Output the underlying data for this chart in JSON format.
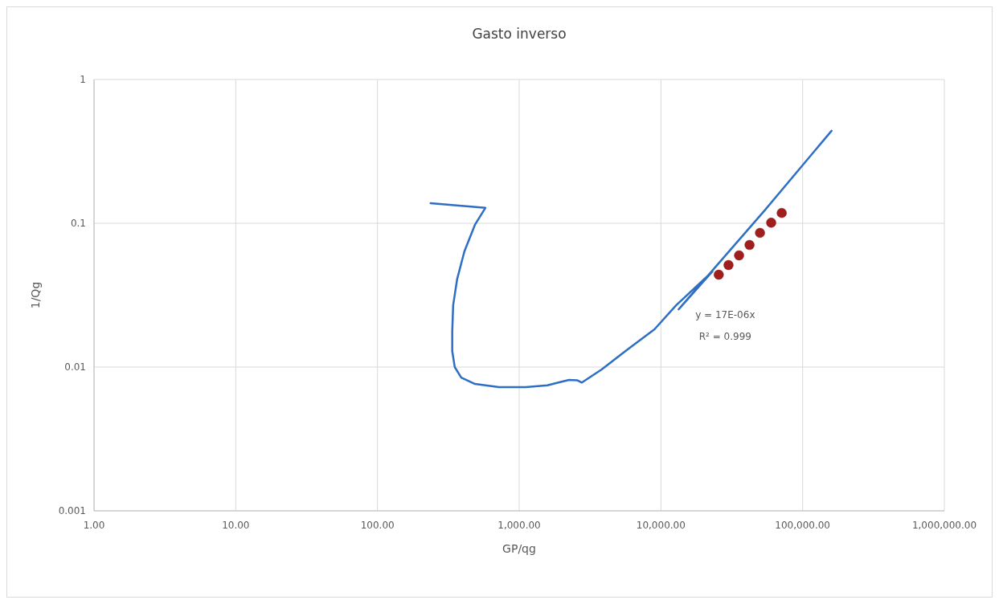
{
  "chart_data": {
    "type": "line",
    "title": "Gasto inverso",
    "xlabel": "GP/qg",
    "ylabel": "1/Qg",
    "log": "xy",
    "grid": true,
    "xlim": [
      1,
      1000000
    ],
    "ylim": [
      0.001,
      1
    ],
    "xticks": [
      {
        "value": 1,
        "label": "1.00"
      },
      {
        "value": 10,
        "label": "10.00"
      },
      {
        "value": 100,
        "label": "100.00"
      },
      {
        "value": 1000,
        "label": "1,000.00"
      },
      {
        "value": 10000,
        "label": "10,000.00"
      },
      {
        "value": 100000,
        "label": "100,000.00"
      },
      {
        "value": 1000000,
        "label": "1,000,000.00"
      }
    ],
    "yticks": [
      0.001,
      0.01,
      0.1,
      1
    ],
    "series": [
      {
        "color": "#2e6fc4",
        "marker": "none",
        "x": [
          237,
          577,
          487,
          411,
          365,
          342,
          337,
          337,
          351,
          390,
          488,
          721,
          1110,
          1580,
          1890,
          2250,
          2560,
          2770,
          3800,
          5850,
          9010,
          12800,
          23100,
          13340,
          54000,
          160000
        ],
        "values": [
          0.138,
          0.128,
          0.0975,
          0.064,
          0.041,
          0.0269,
          0.0176,
          0.0129,
          0.01,
          0.00845,
          0.00763,
          0.00725,
          0.00725,
          0.00746,
          0.0078,
          0.00814,
          0.0081,
          0.0078,
          0.0096,
          0.0133,
          0.0183,
          0.0269,
          0.0462,
          0.0252,
          0.123,
          0.44
        ]
      },
      {
        "type": "scatter",
        "color": "#a01e1e",
        "marker": "circle",
        "x": [
          25600,
          30000,
          35600,
          42200,
          50000,
          60000,
          71200
        ],
        "values": [
          0.0439,
          0.0512,
          0.0598,
          0.0707,
          0.0858,
          0.101,
          0.118
        ]
      }
    ],
    "annotations": [
      "y = 17E-06x",
      "R² = 0.999"
    ]
  }
}
